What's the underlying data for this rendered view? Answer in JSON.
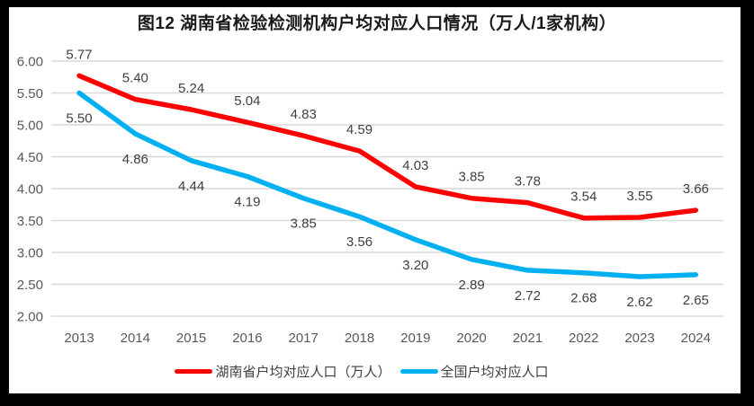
{
  "title": "图12 湖南省检验检测机构户均对应人口情况（万人/1家机构）",
  "legend": [
    {
      "id": "hunan",
      "label": "湖南省户均对应人口（万人）",
      "color": "#FF0000"
    },
    {
      "id": "national",
      "label": "全国户均对应人口",
      "color": "#00B0F0"
    }
  ],
  "chart_data": {
    "type": "line",
    "title": "图12 湖南省检验检测机构户均对应人口情况（万人/1家机构）",
    "categories": [
      "2013",
      "2014",
      "2015",
      "2016",
      "2017",
      "2018",
      "2019",
      "2020",
      "2021",
      "2022",
      "2023",
      "2024"
    ],
    "series": [
      {
        "id": "hunan",
        "name": "湖南省户均对应人口（万人）",
        "color": "#FF0000",
        "label_position": "above",
        "values": [
          5.77,
          5.4,
          5.24,
          5.04,
          4.83,
          4.59,
          4.03,
          3.85,
          3.78,
          3.54,
          3.55,
          3.66
        ]
      },
      {
        "id": "national",
        "name": "全国户均对应人口",
        "color": "#00B0F0",
        "label_position": "below",
        "values": [
          5.5,
          4.86,
          4.44,
          4.19,
          3.85,
          3.56,
          3.2,
          2.89,
          2.72,
          2.68,
          2.62,
          2.65
        ]
      }
    ],
    "xlabel": "",
    "ylabel": "",
    "ylim": [
      2.0,
      6.0
    ],
    "ytick_step": 0.5,
    "value_decimals": 2,
    "grid": true,
    "legend_position": "bottom",
    "gridline_color": "#D9D9D9",
    "tick_label_color": "#595959",
    "data_label_color": "#404040",
    "frame_color": "#000000",
    "background_color": "#FFFFFF"
  }
}
